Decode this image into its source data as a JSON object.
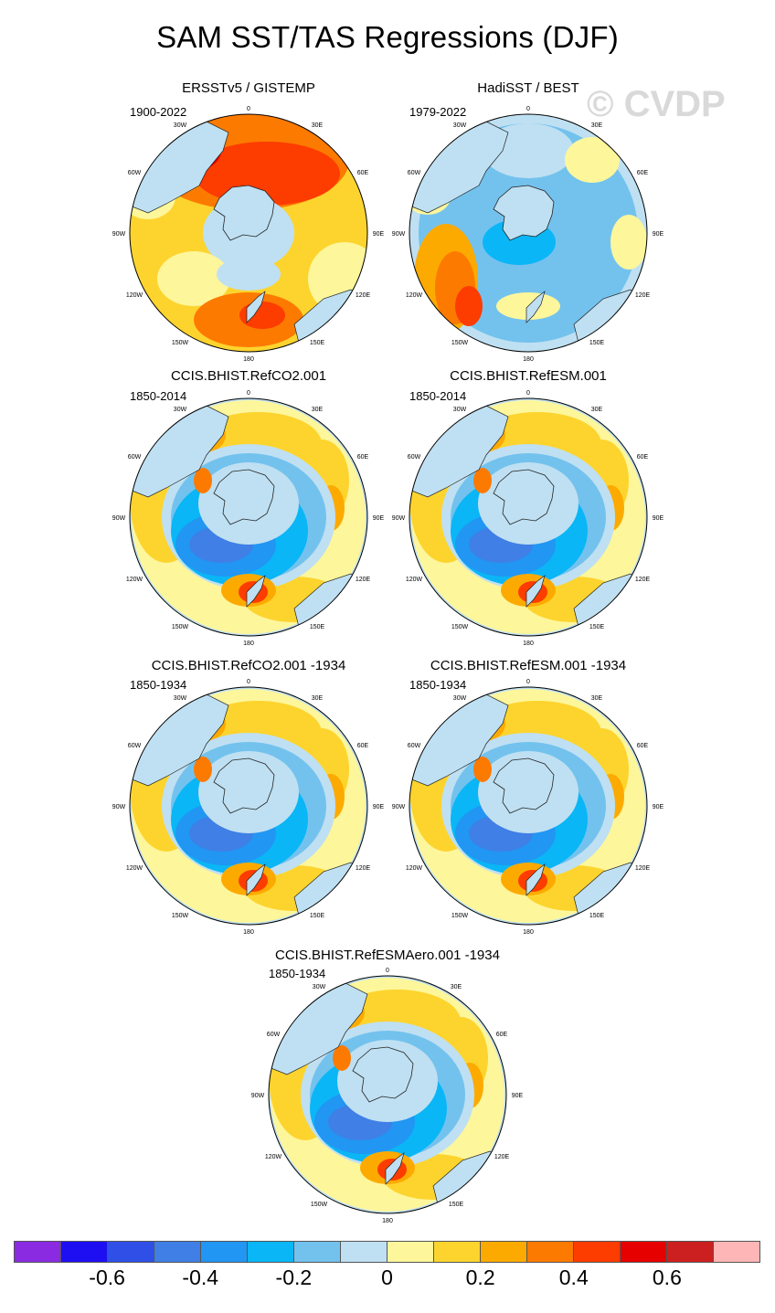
{
  "figure": {
    "title": "SAM SST/TAS Regressions (DJF)",
    "watermark": "© CVDP"
  },
  "map_labels": {
    "n0": "0",
    "n30e": "30E",
    "n60e": "60E",
    "n90e": "90E",
    "n120e": "120E",
    "n150e": "150E",
    "n180": "180",
    "n150w": "150W",
    "n120w": "120W",
    "n90w": "90W",
    "n60w": "60W",
    "n30w": "30W"
  },
  "panels": [
    {
      "title": "ERSSTv5 / GISTEMP",
      "period": "1900-2022",
      "pattern": "obs1"
    },
    {
      "title": "HadiSST / BEST",
      "period": "1979-2022",
      "pattern": "obs2"
    },
    {
      "title": "CCIS.BHIST.RefCO2.001",
      "period": "1850-2014",
      "pattern": "model"
    },
    {
      "title": "CCIS.BHIST.RefESM.001",
      "period": "1850-2014",
      "pattern": "model"
    },
    {
      "title": "CCIS.BHIST.RefCO2.001 -1934",
      "period": "1850-1934",
      "pattern": "model"
    },
    {
      "title": "CCIS.BHIST.RefESM.001 -1934",
      "period": "1850-1934",
      "pattern": "model"
    },
    {
      "title": "CCIS.BHIST.RefESMAero.001 -1934",
      "period": "1850-1934",
      "pattern": "model"
    }
  ],
  "colorbar": {
    "colors": [
      "#8a2be2",
      "#1e0ff2",
      "#2f4fe6",
      "#3f7fe6",
      "#2196f3",
      "#0ab6f6",
      "#73c2ee",
      "#bfe0f2",
      "#fdf69b",
      "#fdd42e",
      "#fdaa00",
      "#fd7a00",
      "#fd3c00",
      "#e60000",
      "#cc1f1f",
      "#ffb6b6"
    ],
    "labels": [
      "-0.6",
      "-0.4",
      "-0.2",
      "0",
      "0.2",
      "0.4",
      "0.6"
    ]
  }
}
